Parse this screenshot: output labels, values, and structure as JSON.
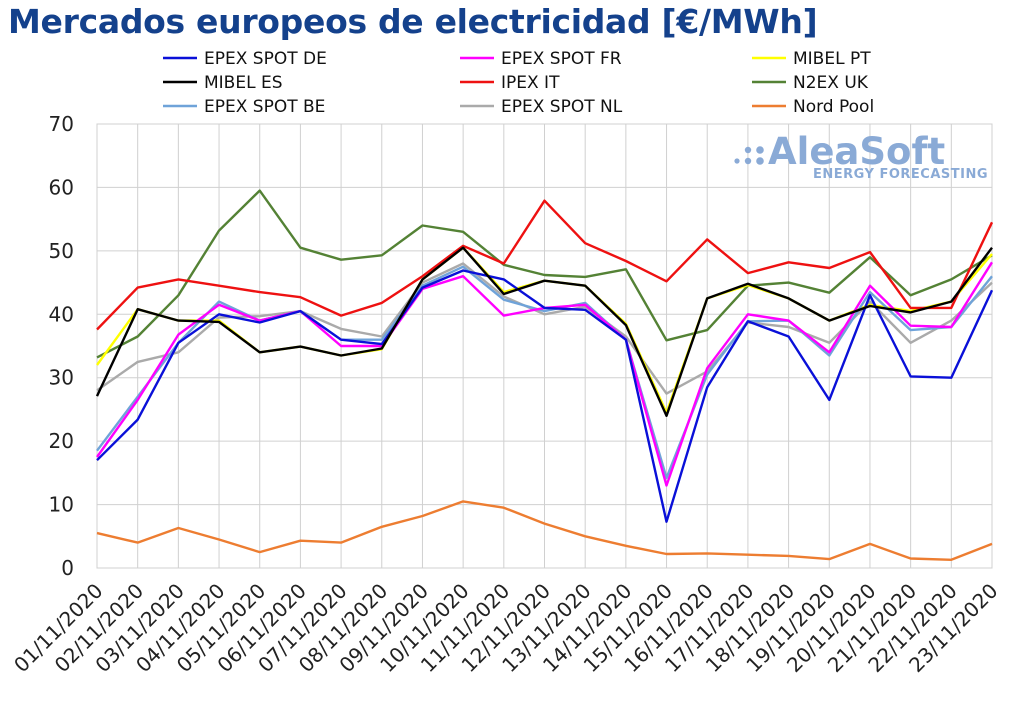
{
  "chart_data": {
    "type": "line",
    "title": "Mercados europeos de electricidad [€/MWh]",
    "xlabel": "",
    "ylabel": "",
    "ylim": [
      0,
      70
    ],
    "yticks": [
      0,
      10,
      20,
      30,
      40,
      50,
      60,
      70
    ],
    "grid": true,
    "legend_position": "top",
    "categories": [
      "01/11/2020",
      "02/11/2020",
      "03/11/2020",
      "04/11/2020",
      "05/11/2020",
      "06/11/2020",
      "07/11/2020",
      "08/11/2020",
      "09/11/2020",
      "10/11/2020",
      "11/11/2020",
      "12/11/2020",
      "13/11/2020",
      "14/11/2020",
      "15/11/2020",
      "16/11/2020",
      "17/11/2020",
      "18/11/2020",
      "19/11/2020",
      "20/11/2020",
      "21/11/2020",
      "22/11/2020",
      "23/11/2020"
    ],
    "series": [
      {
        "name": "EPEX SPOT DE",
        "color": "#0a10d8",
        "values": [
          17.0,
          23.4,
          35.5,
          40.0,
          38.7,
          40.5,
          36.0,
          35.3,
          44.2,
          46.9,
          45.5,
          41.0,
          40.7,
          36.0,
          7.3,
          28.5,
          38.9,
          36.5,
          26.5,
          43.0,
          30.2,
          30.0,
          43.8
        ]
      },
      {
        "name": "EPEX SPOT FR",
        "color": "#ff00ff",
        "values": [
          17.5,
          26.5,
          36.8,
          41.5,
          39.0,
          40.5,
          35.0,
          35.0,
          44.0,
          46.0,
          39.8,
          41.0,
          41.5,
          36.0,
          13.0,
          31.5,
          40.0,
          39.0,
          34.0,
          44.5,
          38.2,
          38.0,
          48.2
        ]
      },
      {
        "name": "MIBEL PT",
        "color": "#ffff00",
        "values": [
          32.0,
          40.8,
          39.0,
          39.0,
          34.0,
          34.9,
          33.5,
          34.5,
          45.5,
          50.5,
          43.5,
          45.3,
          44.5,
          38.5,
          24.5,
          42.5,
          44.6,
          42.5,
          39.0,
          41.5,
          40.5,
          42.0,
          49.5
        ]
      },
      {
        "name": "MIBEL ES",
        "color": "#000000",
        "values": [
          27.1,
          40.8,
          39.0,
          38.8,
          34.0,
          34.9,
          33.5,
          34.6,
          45.5,
          50.5,
          43.2,
          45.3,
          44.5,
          38.3,
          24.0,
          42.5,
          44.8,
          42.5,
          39.0,
          41.3,
          40.3,
          42.0,
          50.5
        ]
      },
      {
        "name": "IPEX IT",
        "color": "#ee1111",
        "values": [
          37.6,
          44.2,
          45.5,
          44.5,
          43.5,
          42.7,
          39.8,
          41.8,
          46.0,
          50.8,
          48.0,
          57.9,
          51.2,
          48.4,
          45.2,
          51.8,
          46.5,
          48.2,
          47.3,
          49.8,
          41.0,
          41.0,
          54.5
        ]
      },
      {
        "name": "N2EX UK",
        "color": "#548235",
        "values": [
          33.2,
          36.5,
          43.0,
          53.2,
          59.5,
          50.5,
          48.6,
          49.3,
          54.0,
          53.0,
          47.8,
          46.2,
          45.9,
          47.1,
          35.9,
          37.5,
          44.5,
          45.0,
          43.4,
          49.0,
          43.0,
          45.5,
          49.3
        ]
      },
      {
        "name": "EPEX SPOT BE",
        "color": "#6fa3d9",
        "values": [
          18.5,
          27.0,
          35.5,
          42.0,
          39.0,
          40.5,
          36.0,
          36.0,
          44.5,
          47.5,
          42.3,
          40.5,
          41.8,
          36.0,
          14.2,
          30.5,
          38.9,
          39.0,
          33.5,
          43.5,
          37.5,
          38.0,
          46.0
        ]
      },
      {
        "name": "EPEX SPOT NL",
        "color": "#aaaaaa",
        "values": [
          28.0,
          32.5,
          34.0,
          39.5,
          39.7,
          40.5,
          37.7,
          36.5,
          45.0,
          48.0,
          42.8,
          40.0,
          41.2,
          36.5,
          27.5,
          31.0,
          38.7,
          38.0,
          35.5,
          42.0,
          35.5,
          39.0,
          45.0
        ]
      },
      {
        "name": "Nord Pool",
        "color": "#ed7d31",
        "values": [
          5.5,
          4.0,
          6.3,
          4.5,
          2.5,
          4.3,
          4.0,
          6.5,
          8.2,
          10.5,
          9.5,
          7.0,
          5.0,
          3.5,
          2.2,
          2.3,
          2.1,
          1.9,
          1.4,
          3.8,
          1.5,
          1.3,
          3.8
        ]
      }
    ]
  },
  "logo": {
    "name": "AleaSoft",
    "tagline": "ENERGY FORECASTING"
  }
}
